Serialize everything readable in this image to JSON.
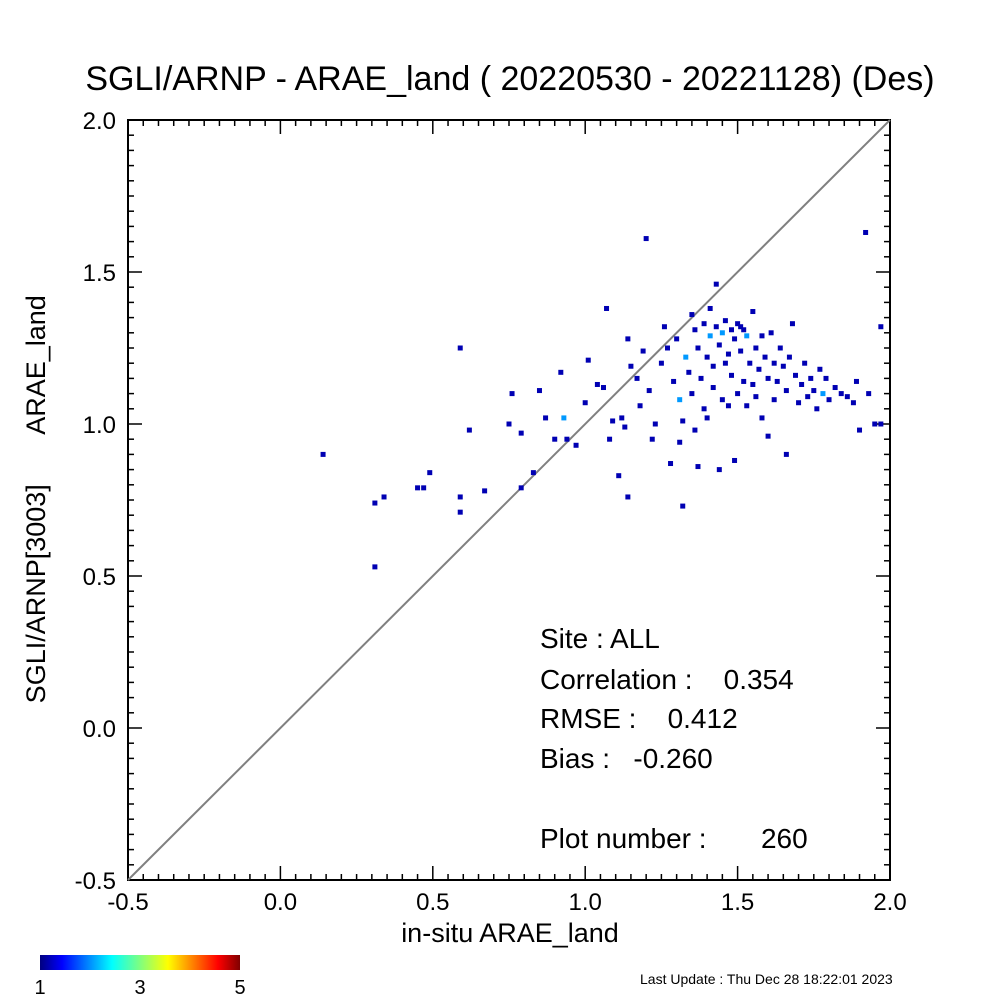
{
  "chart_data": {
    "type": "scatter",
    "title": "SGLI/ARNP - ARAE_land ( 20220530 - 20221128) (Des)",
    "xlabel": "in-situ ARAE_land",
    "ylabel_left": "SGLI/ARNP[3003]",
    "ylabel_right": "ARAE_land",
    "xlim": [
      -0.5,
      2.0
    ],
    "ylim": [
      -0.5,
      2.0
    ],
    "xticks": [
      "-0.5",
      "0.0",
      "0.5",
      "1.0",
      "1.5",
      "2.0"
    ],
    "yticks": [
      "-0.5",
      "0.0",
      "0.5",
      "1.0",
      "1.5",
      "2.0"
    ],
    "one_to_one_line": true,
    "grid": false,
    "colorscale": "jet",
    "color_min": 1,
    "color_max": 5,
    "colorbar_ticks": [
      "1",
      "3",
      "5"
    ],
    "stats": {
      "site": "Site : ALL",
      "correlation": "Correlation :    0.354",
      "rmse": "RMSE :    0.412",
      "bias": "Bias :   -0.260",
      "plot_number": "Plot number :       260"
    },
    "points": [
      [
        0.14,
        0.9,
        1
      ],
      [
        0.31,
        0.53,
        1
      ],
      [
        0.31,
        0.74,
        1
      ],
      [
        0.34,
        0.76,
        1
      ],
      [
        0.45,
        0.79,
        1
      ],
      [
        0.47,
        0.79,
        1
      ],
      [
        0.49,
        0.84,
        1
      ],
      [
        0.59,
        0.76,
        1
      ],
      [
        0.59,
        0.71,
        1
      ],
      [
        0.59,
        1.25,
        1
      ],
      [
        0.62,
        0.98,
        1
      ],
      [
        0.67,
        0.78,
        1
      ],
      [
        0.75,
        1.0,
        1
      ],
      [
        0.76,
        1.1,
        1
      ],
      [
        0.79,
        0.79,
        1
      ],
      [
        0.79,
        0.97,
        1
      ],
      [
        0.83,
        0.84,
        1
      ],
      [
        0.85,
        1.11,
        1
      ],
      [
        0.87,
        1.02,
        1
      ],
      [
        0.9,
        0.95,
        1
      ],
      [
        0.92,
        1.17,
        1
      ],
      [
        0.93,
        1.02,
        2
      ],
      [
        0.94,
        0.95,
        1
      ],
      [
        0.97,
        0.93,
        1
      ],
      [
        1.0,
        1.07,
        1
      ],
      [
        1.01,
        1.21,
        1
      ],
      [
        1.04,
        1.13,
        1
      ],
      [
        1.06,
        1.12,
        1
      ],
      [
        1.07,
        1.38,
        1
      ],
      [
        1.09,
        1.01,
        1
      ],
      [
        1.08,
        0.95,
        1
      ],
      [
        1.12,
        1.02,
        1
      ],
      [
        1.13,
        0.99,
        1
      ],
      [
        1.14,
        1.28,
        1
      ],
      [
        1.11,
        0.83,
        1
      ],
      [
        1.14,
        0.76,
        1
      ],
      [
        1.15,
        1.19,
        1
      ],
      [
        1.17,
        1.15,
        1
      ],
      [
        1.18,
        1.06,
        1
      ],
      [
        1.19,
        1.24,
        1
      ],
      [
        1.2,
        1.61,
        1
      ],
      [
        1.21,
        1.11,
        1
      ],
      [
        1.22,
        0.95,
        1
      ],
      [
        1.23,
        1.0,
        1
      ],
      [
        1.25,
        1.2,
        1
      ],
      [
        1.26,
        1.32,
        1
      ],
      [
        1.27,
        1.25,
        1
      ],
      [
        1.28,
        0.87,
        1
      ],
      [
        1.29,
        1.14,
        1
      ],
      [
        1.3,
        1.28,
        1
      ],
      [
        1.31,
        1.08,
        2
      ],
      [
        1.31,
        0.94,
        1
      ],
      [
        1.32,
        1.01,
        1
      ],
      [
        1.32,
        0.73,
        1
      ],
      [
        1.33,
        1.22,
        2
      ],
      [
        1.34,
        1.17,
        1
      ],
      [
        1.35,
        1.1,
        1
      ],
      [
        1.35,
        1.36,
        1
      ],
      [
        1.36,
        0.98,
        1
      ],
      [
        1.36,
        1.31,
        1
      ],
      [
        1.37,
        0.86,
        1
      ],
      [
        1.37,
        1.25,
        1
      ],
      [
        1.38,
        1.15,
        1
      ],
      [
        1.39,
        1.33,
        1
      ],
      [
        1.39,
        1.05,
        1
      ],
      [
        1.4,
        1.22,
        1
      ],
      [
        1.4,
        1.02,
        1
      ],
      [
        1.41,
        1.29,
        2
      ],
      [
        1.41,
        1.38,
        1
      ],
      [
        1.42,
        1.12,
        1
      ],
      [
        1.42,
        1.19,
        1
      ],
      [
        1.43,
        1.32,
        1
      ],
      [
        1.43,
        1.46,
        1
      ],
      [
        1.44,
        1.26,
        1
      ],
      [
        1.44,
        0.85,
        1
      ],
      [
        1.45,
        1.3,
        2
      ],
      [
        1.45,
        1.08,
        1
      ],
      [
        1.46,
        1.2,
        1
      ],
      [
        1.46,
        1.34,
        1
      ],
      [
        1.47,
        1.23,
        1
      ],
      [
        1.47,
        1.06,
        1
      ],
      [
        1.48,
        1.31,
        1
      ],
      [
        1.48,
        1.16,
        1
      ],
      [
        1.49,
        1.28,
        1
      ],
      [
        1.49,
        0.88,
        1
      ],
      [
        1.5,
        1.33,
        1
      ],
      [
        1.5,
        1.1,
        1
      ],
      [
        1.51,
        1.24,
        1
      ],
      [
        1.51,
        1.32,
        1
      ],
      [
        1.52,
        1.14,
        1
      ],
      [
        1.52,
        1.31,
        1
      ],
      [
        1.53,
        1.29,
        2
      ],
      [
        1.53,
        1.06,
        1
      ],
      [
        1.54,
        1.2,
        1
      ],
      [
        1.55,
        1.37,
        1
      ],
      [
        1.55,
        1.13,
        1
      ],
      [
        1.56,
        1.25,
        1
      ],
      [
        1.56,
        1.09,
        1
      ],
      [
        1.57,
        1.18,
        1
      ],
      [
        1.58,
        1.02,
        1
      ],
      [
        1.58,
        1.29,
        1
      ],
      [
        1.59,
        1.22,
        1
      ],
      [
        1.6,
        1.15,
        1
      ],
      [
        1.6,
        0.96,
        1
      ],
      [
        1.61,
        1.3,
        1
      ],
      [
        1.62,
        1.2,
        1
      ],
      [
        1.62,
        1.08,
        1
      ],
      [
        1.63,
        1.14,
        1
      ],
      [
        1.64,
        1.25,
        1
      ],
      [
        1.65,
        1.19,
        1
      ],
      [
        1.66,
        1.11,
        1
      ],
      [
        1.66,
        0.9,
        1
      ],
      [
        1.67,
        1.22,
        1
      ],
      [
        1.68,
        1.33,
        1
      ],
      [
        1.69,
        1.16,
        1
      ],
      [
        1.7,
        1.07,
        1
      ],
      [
        1.71,
        1.13,
        1
      ],
      [
        1.72,
        1.2,
        1
      ],
      [
        1.73,
        1.09,
        1
      ],
      [
        1.74,
        1.15,
        1
      ],
      [
        1.75,
        1.11,
        1
      ],
      [
        1.76,
        1.05,
        1
      ],
      [
        1.77,
        1.18,
        1
      ],
      [
        1.78,
        1.1,
        2
      ],
      [
        1.79,
        1.15,
        1
      ],
      [
        1.8,
        1.08,
        1
      ],
      [
        1.82,
        1.12,
        1
      ],
      [
        1.84,
        1.1,
        1
      ],
      [
        1.86,
        1.09,
        1
      ],
      [
        1.88,
        1.07,
        1
      ],
      [
        1.89,
        1.14,
        1
      ],
      [
        1.9,
        0.98,
        1
      ],
      [
        1.92,
        1.63,
        1
      ],
      [
        1.93,
        1.1,
        1
      ],
      [
        1.95,
        1.0,
        1
      ],
      [
        1.97,
        1.32,
        1
      ],
      [
        1.97,
        1.0,
        1
      ]
    ]
  },
  "footer": {
    "last_update": "Last Update : Thu Dec 28 18:22:01 2023"
  }
}
